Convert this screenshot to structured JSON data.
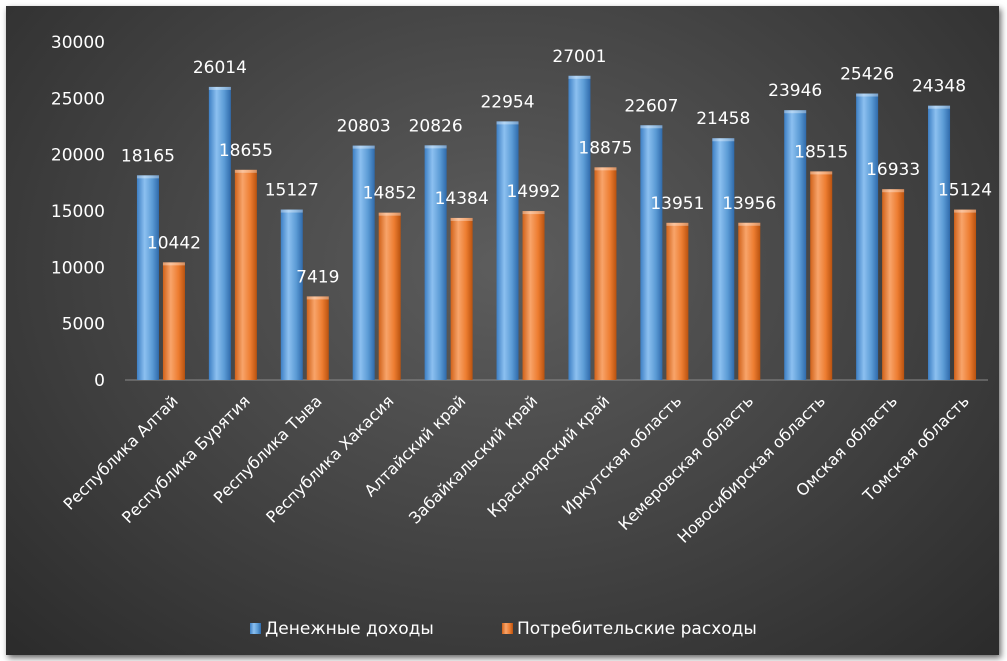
{
  "chart_data": {
    "type": "bar",
    "title": "",
    "xlabel": "",
    "ylabel": "",
    "ylim": [
      0,
      30000
    ],
    "yticks": [
      0,
      5000,
      10000,
      15000,
      20000,
      25000,
      30000
    ],
    "grid": false,
    "legend_position": "bottom",
    "categories": [
      "Республика Алтай",
      "Республика Бурятия",
      "Республика Тыва",
      "Республика Хакасия",
      "Алтайский край",
      "Забайкальский край",
      "Красноярский край",
      "Иркутская область",
      "Кемеровская область",
      "Новосибирская область",
      "Омская область",
      "Томская область"
    ],
    "series": [
      {
        "name": "Денежные доходы",
        "color": "#5b9bd5",
        "values": [
          18165,
          26014,
          15127,
          20803,
          20826,
          22954,
          27001,
          22607,
          21458,
          23946,
          25426,
          24348
        ]
      },
      {
        "name": "Потребительские расходы",
        "color": "#ed7d31",
        "values": [
          10442,
          18655,
          7419,
          14852,
          14384,
          14992,
          18875,
          13951,
          13956,
          18515,
          16933,
          15124
        ]
      }
    ]
  }
}
